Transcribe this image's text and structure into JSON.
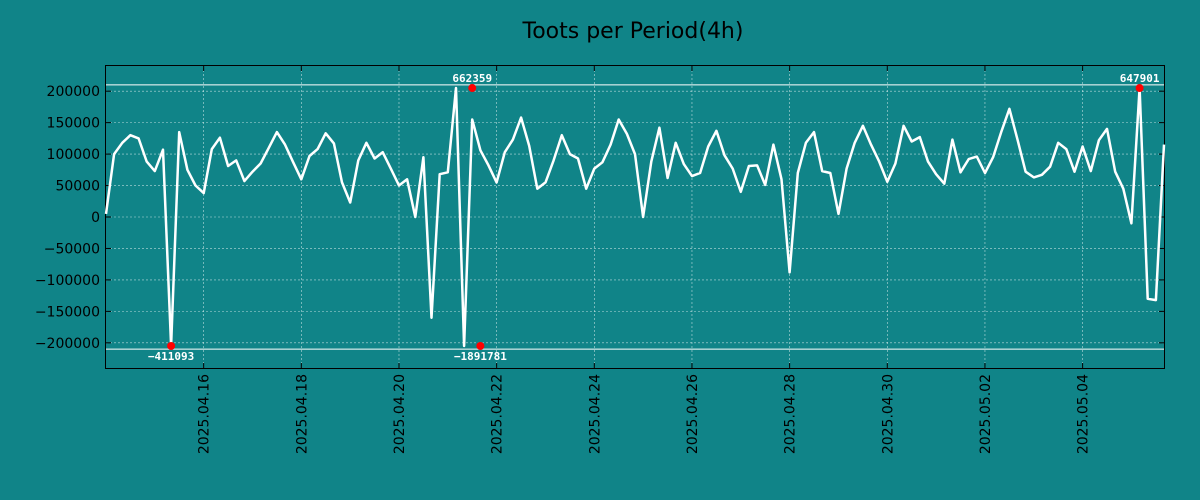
{
  "chart_data": {
    "type": "line",
    "title": "Toots per Period(4h)",
    "xlabel": "",
    "ylabel": "",
    "grid": true,
    "colors": {
      "background": "#108488",
      "line": "#ffffff",
      "marker": "#ff0000",
      "grid": "#ffffff",
      "text": "#000000"
    },
    "x_range": [
      "2025-04-14T00:00",
      "2025-05-05T16:00"
    ],
    "y_range": [
      -240000,
      240000
    ],
    "y_ticks": [
      {
        "value": 200000,
        "label": "200000"
      },
      {
        "value": 150000,
        "label": "150000"
      },
      {
        "value": 100000,
        "label": "100000"
      },
      {
        "value": 50000,
        "label": "50000"
      },
      {
        "value": 0,
        "label": "0"
      },
      {
        "value": -50000,
        "label": "−50000"
      },
      {
        "value": -100000,
        "label": "−100000"
      },
      {
        "value": -150000,
        "label": "−150000"
      },
      {
        "value": -200000,
        "label": "−200000"
      }
    ],
    "x_ticks": [
      {
        "value": "2025-04-16",
        "label": "2025.04.16"
      },
      {
        "value": "2025-04-18",
        "label": "2025.04.18"
      },
      {
        "value": "2025-04-20",
        "label": "2025.04.20"
      },
      {
        "value": "2025-04-22",
        "label": "2025.04.22"
      },
      {
        "value": "2025-04-24",
        "label": "2025.04.24"
      },
      {
        "value": "2025-04-26",
        "label": "2025.04.26"
      },
      {
        "value": "2025-04-28",
        "label": "2025.04.28"
      },
      {
        "value": "2025-04-30",
        "label": "2025.04.30"
      },
      {
        "value": "2025-05-02",
        "label": "2025.05.02"
      },
      {
        "value": "2025-05-04",
        "label": "2025.05.04"
      }
    ],
    "reference_lines": [
      210000,
      -210000
    ],
    "series": [
      {
        "x": [
          "2025-04-14T00:00",
          "2025-04-14T04:00",
          "2025-04-14T08:00",
          "2025-04-14T12:00",
          "2025-04-14T16:00",
          "2025-04-14T20:00",
          "2025-04-15T00:00",
          "2025-04-15T04:00",
          "2025-04-15T08:00",
          "2025-04-15T12:00",
          "2025-04-15T16:00",
          "2025-04-15T20:00",
          "2025-04-16T00:00",
          "2025-04-16T04:00",
          "2025-04-16T08:00",
          "2025-04-16T12:00",
          "2025-04-16T16:00",
          "2025-04-16T20:00",
          "2025-04-17T00:00",
          "2025-04-17T04:00",
          "2025-04-17T08:00",
          "2025-04-17T12:00",
          "2025-04-17T16:00",
          "2025-04-17T20:00",
          "2025-04-18T00:00",
          "2025-04-18T04:00",
          "2025-04-18T08:00",
          "2025-04-18T12:00",
          "2025-04-18T16:00",
          "2025-04-18T20:00",
          "2025-04-19T00:00",
          "2025-04-19T04:00",
          "2025-04-19T08:00",
          "2025-04-19T12:00",
          "2025-04-19T16:00",
          "2025-04-19T20:00",
          "2025-04-20T00:00",
          "2025-04-20T04:00",
          "2025-04-20T08:00",
          "2025-04-20T12:00",
          "2025-04-20T16:00",
          "2025-04-20T20:00",
          "2025-04-21T00:00",
          "2025-04-21T04:00",
          "2025-04-21T08:00",
          "2025-04-21T12:00",
          "2025-04-21T16:00",
          "2025-04-21T20:00",
          "2025-04-22T00:00",
          "2025-04-22T04:00",
          "2025-04-22T08:00",
          "2025-04-22T12:00",
          "2025-04-22T16:00",
          "2025-04-22T20:00",
          "2025-04-23T00:00",
          "2025-04-23T04:00",
          "2025-04-23T08:00",
          "2025-04-23T12:00",
          "2025-04-23T16:00",
          "2025-04-23T20:00",
          "2025-04-24T00:00",
          "2025-04-24T04:00",
          "2025-04-24T08:00",
          "2025-04-24T12:00",
          "2025-04-24T16:00",
          "2025-04-24T20:00",
          "2025-04-25T00:00",
          "2025-04-25T04:00",
          "2025-04-25T08:00",
          "2025-04-25T12:00",
          "2025-04-25T16:00",
          "2025-04-25T20:00",
          "2025-04-26T00:00",
          "2025-04-26T04:00",
          "2025-04-26T08:00",
          "2025-04-26T12:00",
          "2025-04-26T16:00",
          "2025-04-26T20:00",
          "2025-04-27T00:00",
          "2025-04-27T04:00",
          "2025-04-27T08:00",
          "2025-04-27T12:00",
          "2025-04-27T16:00",
          "2025-04-27T20:00",
          "2025-04-28T00:00",
          "2025-04-28T04:00",
          "2025-04-28T08:00",
          "2025-04-28T12:00",
          "2025-04-28T16:00",
          "2025-04-28T20:00",
          "2025-04-29T00:00",
          "2025-04-29T04:00",
          "2025-04-29T08:00",
          "2025-04-29T12:00",
          "2025-04-29T16:00",
          "2025-04-29T20:00",
          "2025-04-30T00:00",
          "2025-04-30T04:00",
          "2025-04-30T08:00",
          "2025-04-30T12:00",
          "2025-04-30T16:00",
          "2025-04-30T20:00",
          "2025-05-01T00:00",
          "2025-05-01T04:00",
          "2025-05-01T08:00",
          "2025-05-01T12:00",
          "2025-05-01T16:00",
          "2025-05-01T20:00",
          "2025-05-02T00:00",
          "2025-05-02T04:00",
          "2025-05-02T08:00",
          "2025-05-02T12:00",
          "2025-05-02T16:00",
          "2025-05-02T20:00",
          "2025-05-03T00:00",
          "2025-05-03T04:00",
          "2025-05-03T08:00",
          "2025-05-03T12:00",
          "2025-05-03T16:00",
          "2025-05-03T20:00",
          "2025-05-04T00:00",
          "2025-05-04T04:00",
          "2025-05-04T08:00",
          "2025-05-04T12:00",
          "2025-05-04T16:00",
          "2025-05-04T20:00",
          "2025-05-05T00:00",
          "2025-05-05T04:00",
          "2025-05-05T08:00",
          "2025-05-05T12:00",
          "2025-05-05T16:00"
        ],
        "y": [
          5000,
          100000,
          118000,
          130000,
          125000,
          88000,
          73000,
          107000,
          -205000,
          135000,
          75000,
          50000,
          38000,
          108000,
          126000,
          81000,
          90000,
          57000,
          72000,
          85000,
          110000,
          135000,
          115000,
          87000,
          60000,
          97000,
          108000,
          133000,
          117000,
          55000,
          23000,
          90000,
          118000,
          93000,
          103000,
          77000,
          50000,
          60000,
          0,
          95000,
          -160000,
          68000,
          71000,
          205000,
          -205000,
          155000,
          106000,
          82000,
          55000,
          103000,
          123000,
          158000,
          113000,
          45000,
          55000,
          90000,
          130000,
          100000,
          93000,
          45000,
          77000,
          87000,
          115000,
          155000,
          132000,
          100000,
          0,
          88000,
          142000,
          62000,
          118000,
          84000,
          65000,
          70000,
          112000,
          137000,
          98000,
          77000,
          40000,
          81000,
          82000,
          51000,
          115000,
          60000,
          -88000,
          70000,
          118000,
          135000,
          73000,
          70000,
          5000,
          77000,
          118000,
          145000,
          115000,
          88000,
          56000,
          85000,
          145000,
          120000,
          127000,
          88000,
          68000,
          53000,
          123000,
          71000,
          92000,
          96000,
          70000,
          95000,
          135000,
          172000,
          123000,
          72000,
          63000,
          67000,
          80000,
          118000,
          108000,
          72000,
          112000,
          73000,
          122000,
          140000,
          72000,
          45000,
          -10000,
          205000,
          -130000,
          -132000,
          115000
        ]
      }
    ],
    "annotations": [
      {
        "x": "2025-04-15T08:00",
        "y": -205000,
        "label": "−411093",
        "position": "below"
      },
      {
        "x": "2025-04-21T12:00",
        "y": 205000,
        "label": "662359",
        "position": "above"
      },
      {
        "x": "2025-04-21T16:00",
        "y": -205000,
        "label": "−1891781",
        "position": "below"
      },
      {
        "x": "2025-05-05T04:00",
        "y": 205000,
        "label": "647901",
        "position": "above"
      }
    ]
  }
}
